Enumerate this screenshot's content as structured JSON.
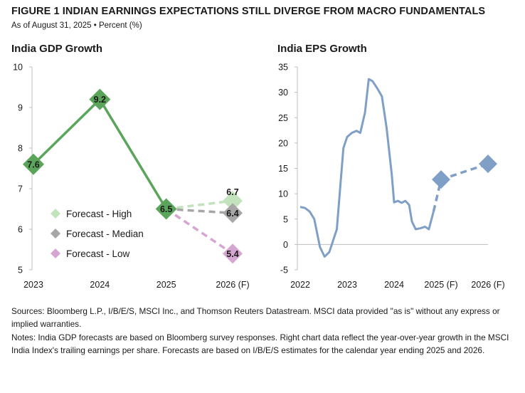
{
  "header": {
    "title": "FIGURE 1   INDIAN EARNINGS EXPECTATIONS STILL DIVERGE FROM MACRO FUNDAMENTALS",
    "subtitle": "As of August 31, 2025 • Percent (%)"
  },
  "chart_data": [
    {
      "type": "line",
      "title": "India GDP Growth",
      "categories": [
        "2023",
        "2024",
        "2025",
        "2026 (F)"
      ],
      "ylim": [
        5,
        10
      ],
      "yticks": [
        5,
        6,
        7,
        8,
        9,
        10
      ],
      "grid": false,
      "legend_position": "center-left",
      "colors": {
        "actual": "#5aa55a",
        "high": "#c2e3bc",
        "median": "#a6a6a6",
        "low": "#d6a6d2",
        "label_bg_actual": "#5aa55a"
      },
      "series": [
        {
          "values": [
            7.6,
            9.2,
            6.5,
            null
          ],
          "labels": [
            "7.6",
            "9.2",
            "6.5",
            ""
          ]
        },
        {
          "name": "Forecast - High",
          "values": [
            null,
            null,
            6.5,
            6.7
          ],
          "labels": [
            "",
            "",
            "",
            "6.7"
          ]
        },
        {
          "name": "Forecast - Median",
          "values": [
            null,
            null,
            6.5,
            6.4
          ],
          "labels": [
            "",
            "",
            "",
            "6.4"
          ]
        },
        {
          "name": "Forecast - Low",
          "values": [
            null,
            null,
            6.5,
            5.4
          ],
          "labels": [
            "",
            "",
            "",
            "5.4"
          ]
        }
      ]
    },
    {
      "type": "line",
      "title": "India EPS Growth",
      "xticks": [
        "2022",
        "2023",
        "2024",
        "2025 (F)",
        "2026 (F)"
      ],
      "ylim": [
        -5,
        35
      ],
      "yticks": [
        -5,
        0,
        5,
        10,
        15,
        20,
        25,
        30,
        35
      ],
      "grid": false,
      "colors": {
        "line": "#7f9fc6"
      },
      "series": [
        {
          "values": [
            [
              2022.0,
              7.4
            ],
            [
              2022.1,
              7.2
            ],
            [
              2022.2,
              6.5
            ],
            [
              2022.3,
              5.0
            ],
            [
              2022.42,
              -0.5
            ],
            [
              2022.52,
              -2.4
            ],
            [
              2022.62,
              -1.5
            ],
            [
              2022.78,
              3.0
            ],
            [
              2022.92,
              19.0
            ],
            [
              2023.0,
              21.2
            ],
            [
              2023.1,
              22.0
            ],
            [
              2023.2,
              22.4
            ],
            [
              2023.28,
              22.0
            ],
            [
              2023.38,
              26.0
            ],
            [
              2023.46,
              32.6
            ],
            [
              2023.54,
              32.2
            ],
            [
              2023.64,
              30.8
            ],
            [
              2023.74,
              29.2
            ],
            [
              2023.84,
              23.0
            ],
            [
              2023.95,
              13.8
            ],
            [
              2024.0,
              8.3
            ],
            [
              2024.08,
              8.6
            ],
            [
              2024.16,
              8.2
            ],
            [
              2024.24,
              8.6
            ],
            [
              2024.32,
              7.8
            ],
            [
              2024.38,
              4.5
            ],
            [
              2024.46,
              3.0
            ],
            [
              2024.56,
              3.2
            ],
            [
              2024.66,
              3.5
            ],
            [
              2024.74,
              3.0
            ],
            [
              2024.84,
              6.5
            ]
          ]
        },
        {
          "name": "Forecast",
          "values": [
            [
              2024.84,
              6.5
            ],
            [
              2025.0,
              12.8
            ],
            [
              2026.0,
              15.9
            ]
          ]
        }
      ]
    }
  ],
  "footer": {
    "sources": "Sources: Bloomberg L.P., I/B/E/S, MSCI Inc., and Thomson Reuters Datastream. MSCI data provided \"as is\" without any express or implied warranties.",
    "notes": "Notes: India GDP forecasts are based on Bloomberg survey responses. Right chart data reflect the year-over-year growth in the MSCI India Index's trailing earnings per share. Forecasts are based on I/B/E/S estimates for the calendar year ending 2025 and 2026."
  }
}
